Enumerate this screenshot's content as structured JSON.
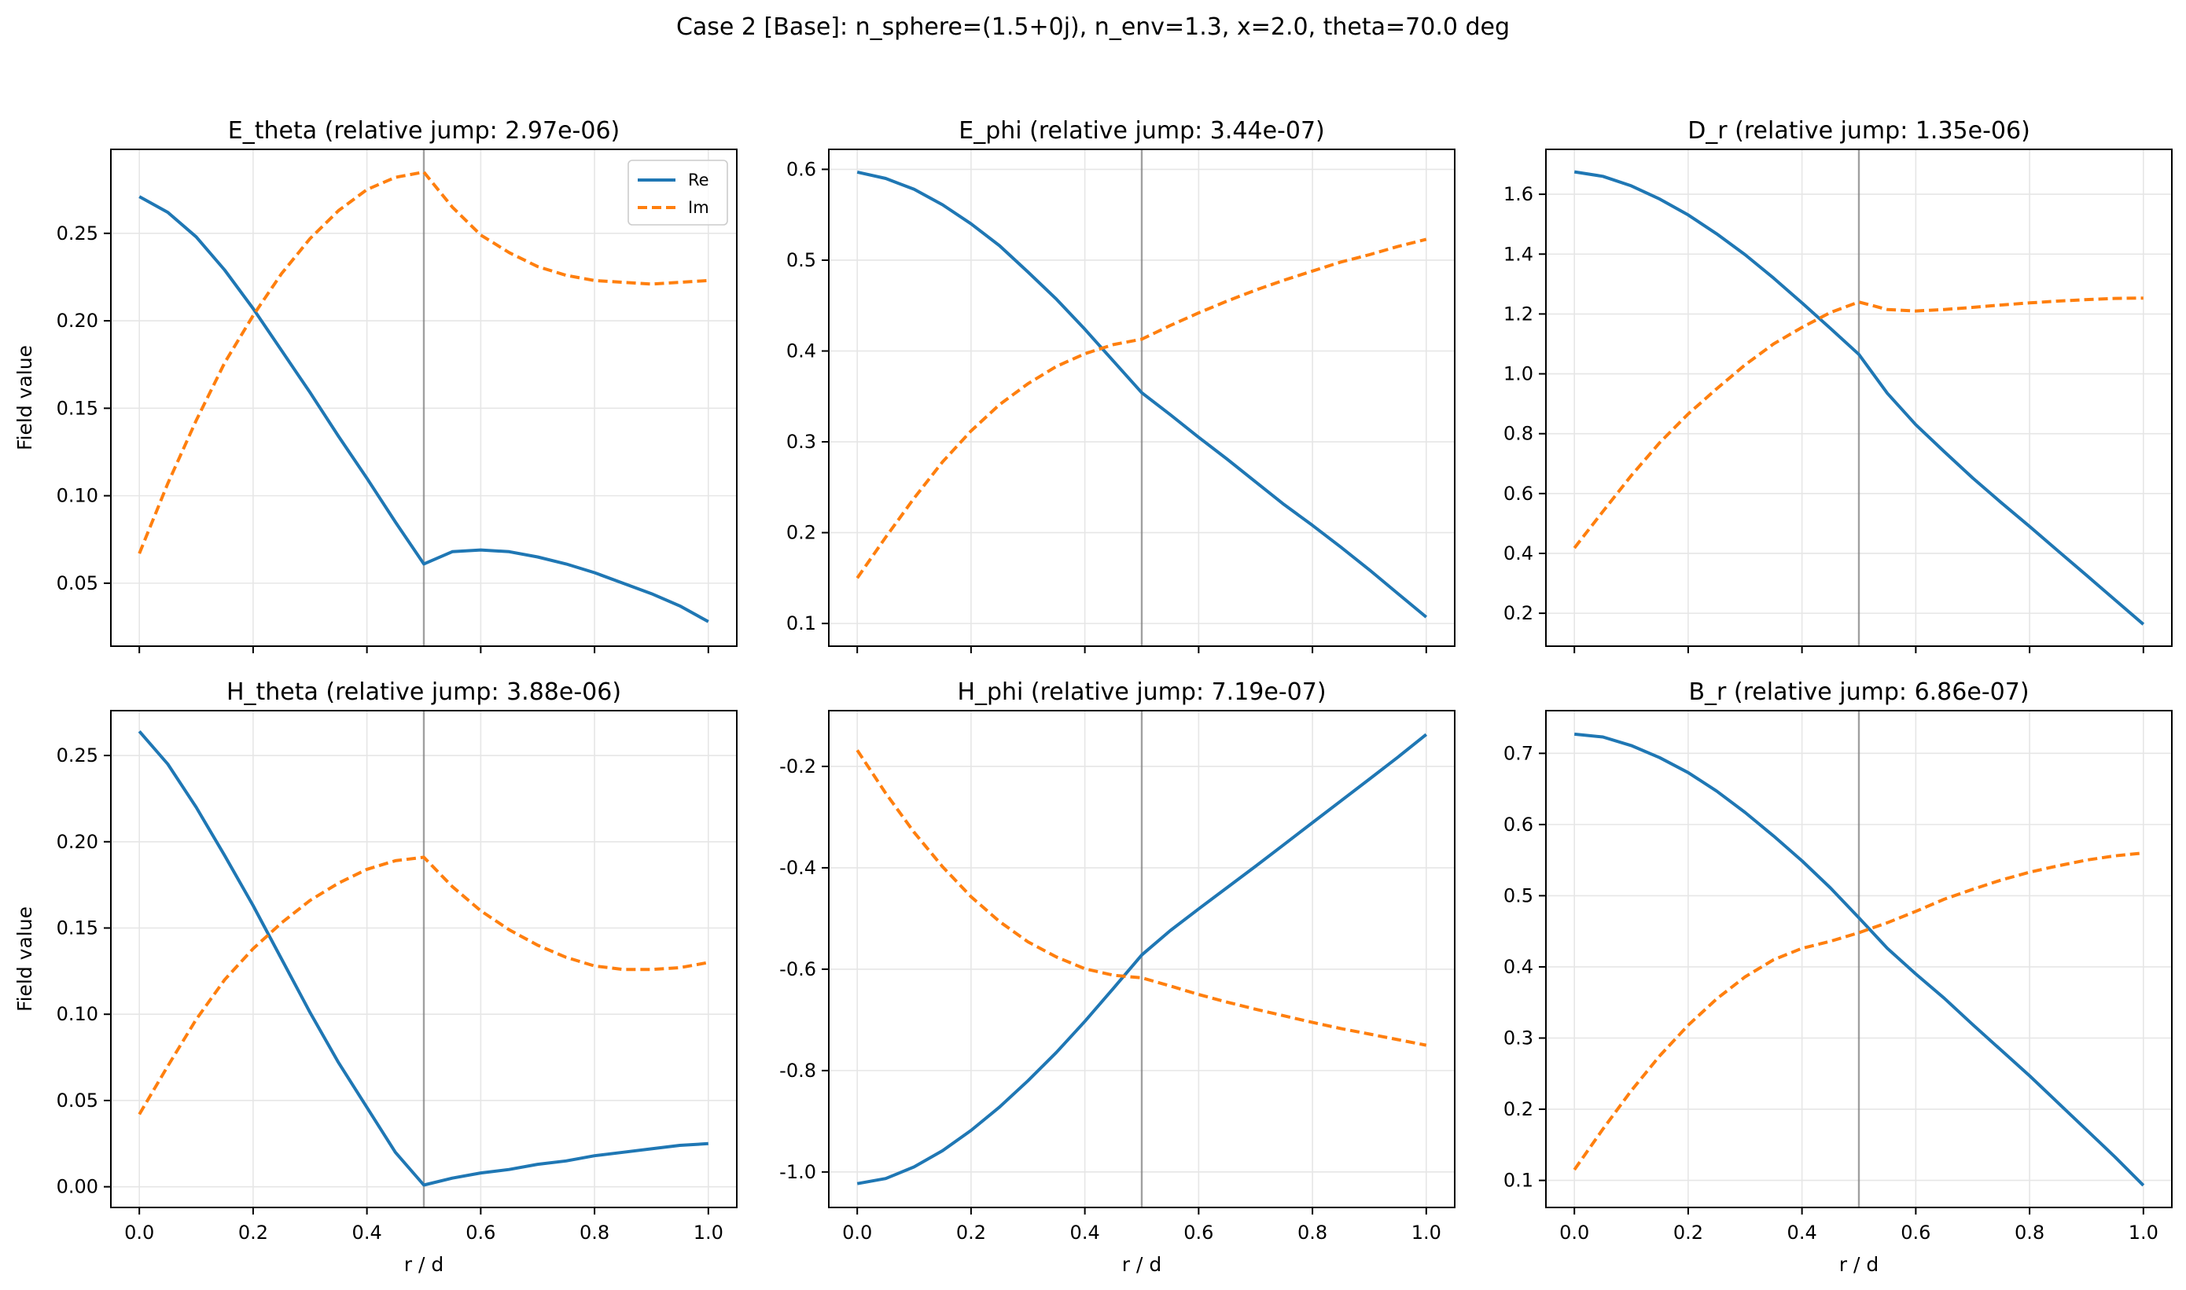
{
  "suptitle": "Case 2 [Base]: n_sphere=(1.5+0j), n_env=1.3, x=2.0, theta=70.0 deg",
  "colors": {
    "re": "#1f77b4",
    "im": "#ff7f0e",
    "interface": "#808080",
    "grid": "#e6e6e6"
  },
  "legend": {
    "re_label": "Re",
    "im_label": "Im"
  },
  "chart_data": [
    {
      "type": "line",
      "title": "E_theta (relative jump: 2.97e-06)",
      "xlabel": "",
      "ylabel": "Field value",
      "xlim": [
        -0.05,
        1.05
      ],
      "ylim": [
        0.014,
        0.298
      ],
      "xticks": [
        "0.0",
        "0.2",
        "0.4",
        "0.6",
        "0.8",
        "1.0"
      ],
      "yticks": [
        "0.05",
        "0.10",
        "0.15",
        "0.20",
        "0.25"
      ],
      "interface_x": 0.5,
      "x": [
        0.0,
        0.05,
        0.1,
        0.15,
        0.2,
        0.25,
        0.3,
        0.35,
        0.4,
        0.45,
        0.5,
        0.55,
        0.6,
        0.65,
        0.7,
        0.75,
        0.8,
        0.85,
        0.9,
        0.95,
        1.0
      ],
      "series": [
        {
          "name": "Re",
          "values": [
            0.271,
            0.262,
            0.248,
            0.229,
            0.207,
            0.183,
            0.159,
            0.134,
            0.11,
            0.085,
            0.061,
            0.068,
            0.069,
            0.068,
            0.065,
            0.061,
            0.056,
            0.05,
            0.044,
            0.037,
            0.028
          ]
        },
        {
          "name": "Im",
          "values": [
            0.067,
            0.107,
            0.143,
            0.176,
            0.203,
            0.227,
            0.247,
            0.263,
            0.275,
            0.282,
            0.285,
            0.265,
            0.249,
            0.239,
            0.231,
            0.226,
            0.223,
            0.222,
            0.221,
            0.222,
            0.223
          ]
        }
      ]
    },
    {
      "type": "line",
      "title": "E_phi (relative jump: 3.44e-07)",
      "xlabel": "",
      "ylabel": "",
      "xlim": [
        -0.05,
        1.05
      ],
      "ylim": [
        0.075,
        0.622
      ],
      "xticks": [
        "0.0",
        "0.2",
        "0.4",
        "0.6",
        "0.8",
        "1.0"
      ],
      "yticks": [
        "0.1",
        "0.2",
        "0.3",
        "0.4",
        "0.5",
        "0.6"
      ],
      "interface_x": 0.5,
      "x": [
        0.0,
        0.05,
        0.1,
        0.15,
        0.2,
        0.25,
        0.3,
        0.35,
        0.4,
        0.45,
        0.5,
        0.55,
        0.6,
        0.65,
        0.7,
        0.75,
        0.8,
        0.85,
        0.9,
        0.95,
        1.0
      ],
      "series": [
        {
          "name": "Re",
          "values": [
            0.597,
            0.59,
            0.578,
            0.561,
            0.54,
            0.516,
            0.487,
            0.457,
            0.424,
            0.389,
            0.354,
            0.33,
            0.305,
            0.281,
            0.256,
            0.231,
            0.208,
            0.184,
            0.159,
            0.133,
            0.107
          ]
        },
        {
          "name": "Im",
          "values": [
            0.15,
            0.195,
            0.238,
            0.278,
            0.312,
            0.341,
            0.364,
            0.383,
            0.397,
            0.407,
            0.413,
            0.428,
            0.442,
            0.455,
            0.467,
            0.478,
            0.488,
            0.498,
            0.506,
            0.515,
            0.523
          ]
        }
      ]
    },
    {
      "type": "line",
      "title": "D_r (relative jump: 1.35e-06)",
      "xlabel": "",
      "ylabel": "",
      "xlim": [
        -0.05,
        1.05
      ],
      "ylim": [
        0.09,
        1.75
      ],
      "xticks": [
        "0.0",
        "0.2",
        "0.4",
        "0.6",
        "0.8",
        "1.0"
      ],
      "yticks": [
        "0.2",
        "0.4",
        "0.6",
        "0.8",
        "1.0",
        "1.2",
        "1.4",
        "1.6"
      ],
      "interface_x": 0.5,
      "x": [
        0.0,
        0.05,
        0.1,
        0.15,
        0.2,
        0.25,
        0.3,
        0.35,
        0.4,
        0.45,
        0.5,
        0.55,
        0.6,
        0.65,
        0.7,
        0.75,
        0.8,
        0.85,
        0.9,
        0.95,
        1.0
      ],
      "series": [
        {
          "name": "Re",
          "values": [
            1.675,
            1.66,
            1.628,
            1.584,
            1.531,
            1.468,
            1.398,
            1.32,
            1.237,
            1.152,
            1.065,
            0.935,
            0.83,
            0.74,
            0.652,
            0.57,
            0.49,
            0.408,
            0.327,
            0.245,
            0.163
          ]
        },
        {
          "name": "Im",
          "values": [
            0.418,
            0.54,
            0.66,
            0.77,
            0.866,
            0.95,
            1.03,
            1.1,
            1.155,
            1.205,
            1.24,
            1.215,
            1.21,
            1.215,
            1.222,
            1.23,
            1.237,
            1.243,
            1.248,
            1.252,
            1.253
          ]
        }
      ]
    },
    {
      "type": "line",
      "title": "H_theta (relative jump: 3.88e-06)",
      "xlabel": "r / d",
      "ylabel": "Field value",
      "xlim": [
        -0.05,
        1.05
      ],
      "ylim": [
        -0.012,
        0.276
      ],
      "xticks": [
        "0.0",
        "0.2",
        "0.4",
        "0.6",
        "0.8",
        "1.0"
      ],
      "yticks": [
        "0.00",
        "0.05",
        "0.10",
        "0.15",
        "0.20",
        "0.25"
      ],
      "interface_x": 0.5,
      "x": [
        0.0,
        0.05,
        0.1,
        0.15,
        0.2,
        0.25,
        0.3,
        0.35,
        0.4,
        0.45,
        0.5,
        0.55,
        0.6,
        0.65,
        0.7,
        0.75,
        0.8,
        0.85,
        0.9,
        0.95,
        1.0
      ],
      "series": [
        {
          "name": "Re",
          "values": [
            0.264,
            0.245,
            0.22,
            0.192,
            0.163,
            0.132,
            0.101,
            0.072,
            0.046,
            0.02,
            0.001,
            0.005,
            0.008,
            0.01,
            0.013,
            0.015,
            0.018,
            0.02,
            0.022,
            0.024,
            0.025
          ]
        },
        {
          "name": "Im",
          "values": [
            0.042,
            0.07,
            0.097,
            0.12,
            0.138,
            0.153,
            0.166,
            0.176,
            0.184,
            0.189,
            0.191,
            0.174,
            0.16,
            0.149,
            0.14,
            0.133,
            0.128,
            0.126,
            0.126,
            0.127,
            0.13
          ]
        }
      ]
    },
    {
      "type": "line",
      "title": "H_phi (relative jump: 7.19e-07)",
      "xlabel": "r / d",
      "ylabel": "",
      "xlim": [
        -0.05,
        1.05
      ],
      "ylim": [
        -1.07,
        -0.09
      ],
      "xticks": [
        "0.0",
        "0.2",
        "0.4",
        "0.6",
        "0.8",
        "1.0"
      ],
      "yticks": [
        "-1.0",
        "-0.8",
        "-0.6",
        "-0.4",
        "-0.2"
      ],
      "interface_x": 0.5,
      "x": [
        0.0,
        0.05,
        0.1,
        0.15,
        0.2,
        0.25,
        0.3,
        0.35,
        0.4,
        0.45,
        0.5,
        0.55,
        0.6,
        0.65,
        0.7,
        0.75,
        0.8,
        0.85,
        0.9,
        0.95,
        1.0
      ],
      "series": [
        {
          "name": "Re",
          "values": [
            -1.023,
            -1.013,
            -0.99,
            -0.958,
            -0.918,
            -0.872,
            -0.82,
            -0.764,
            -0.703,
            -0.638,
            -0.572,
            -0.524,
            -0.481,
            -0.439,
            -0.397,
            -0.354,
            -0.311,
            -0.268,
            -0.225,
            -0.182,
            -0.137
          ]
        },
        {
          "name": "Im",
          "values": [
            -0.168,
            -0.253,
            -0.33,
            -0.398,
            -0.457,
            -0.506,
            -0.546,
            -0.576,
            -0.599,
            -0.612,
            -0.617,
            -0.633,
            -0.65,
            -0.665,
            -0.679,
            -0.692,
            -0.705,
            -0.717,
            -0.728,
            -0.739,
            -0.75
          ]
        }
      ]
    },
    {
      "type": "line",
      "title": "B_r (relative jump: 6.86e-07)",
      "xlabel": "r / d",
      "ylabel": "",
      "xlim": [
        -0.05,
        1.05
      ],
      "ylim": [
        0.062,
        0.76
      ],
      "xticks": [
        "0.0",
        "0.2",
        "0.4",
        "0.6",
        "0.8",
        "1.0"
      ],
      "yticks": [
        "0.1",
        "0.2",
        "0.3",
        "0.4",
        "0.5",
        "0.6",
        "0.7"
      ],
      "interface_x": 0.5,
      "x": [
        0.0,
        0.05,
        0.1,
        0.15,
        0.2,
        0.25,
        0.3,
        0.35,
        0.4,
        0.45,
        0.5,
        0.55,
        0.6,
        0.65,
        0.7,
        0.75,
        0.8,
        0.85,
        0.9,
        0.95,
        1.0
      ],
      "series": [
        {
          "name": "Re",
          "values": [
            0.727,
            0.723,
            0.711,
            0.694,
            0.673,
            0.647,
            0.617,
            0.584,
            0.549,
            0.511,
            0.469,
            0.426,
            0.39,
            0.356,
            0.319,
            0.283,
            0.247,
            0.209,
            0.171,
            0.133,
            0.093
          ]
        },
        {
          "name": "Im",
          "values": [
            0.115,
            0.172,
            0.226,
            0.275,
            0.318,
            0.355,
            0.386,
            0.41,
            0.426,
            0.436,
            0.448,
            0.462,
            0.478,
            0.495,
            0.509,
            0.522,
            0.533,
            0.542,
            0.55,
            0.556,
            0.56
          ]
        }
      ]
    }
  ]
}
